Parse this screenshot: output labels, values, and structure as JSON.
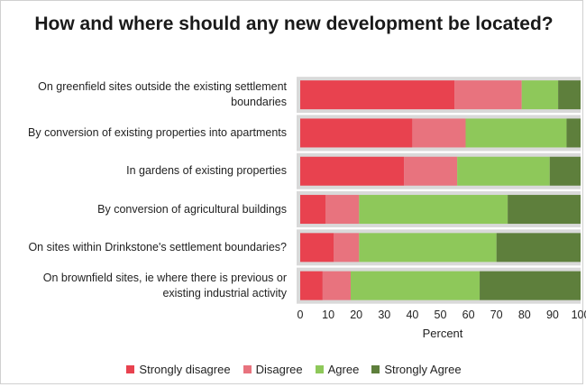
{
  "chart_data": {
    "type": "bar",
    "orientation": "horizontal",
    "stacked": true,
    "title": "How and where should any new development be located?",
    "xlabel": "Percent",
    "ylabel": "",
    "xlim": [
      0,
      100
    ],
    "x_ticks": [
      "0",
      "10",
      "20",
      "30",
      "40",
      "50",
      "60",
      "70",
      "80",
      "90",
      "100"
    ],
    "categories": [
      "On greenfield sites outside the existing settlement boundaries",
      "By conversion of existing properties into apartments",
      "In gardens of existing properties",
      "By conversion of agricultural buildings",
      "On sites within Drinkstone's settlement boundaries?",
      "On brownfield sites, ie where there is previous or existing industrial activity"
    ],
    "series": [
      {
        "name": "Strongly disagree",
        "color": "#e8424f",
        "values": [
          55,
          40,
          37,
          9,
          12,
          8
        ]
      },
      {
        "name": "Disagree",
        "color": "#e8737e",
        "values": [
          24,
          19,
          19,
          12,
          9,
          10
        ]
      },
      {
        "name": "Agree",
        "color": "#8ec85a",
        "values": [
          13,
          36,
          33,
          53,
          49,
          46
        ]
      },
      {
        "name": "Strongly Agree",
        "color": "#5e7f3c",
        "values": [
          8,
          5,
          11,
          26,
          30,
          36
        ]
      }
    ],
    "legend_position": "bottom",
    "grid": false
  }
}
